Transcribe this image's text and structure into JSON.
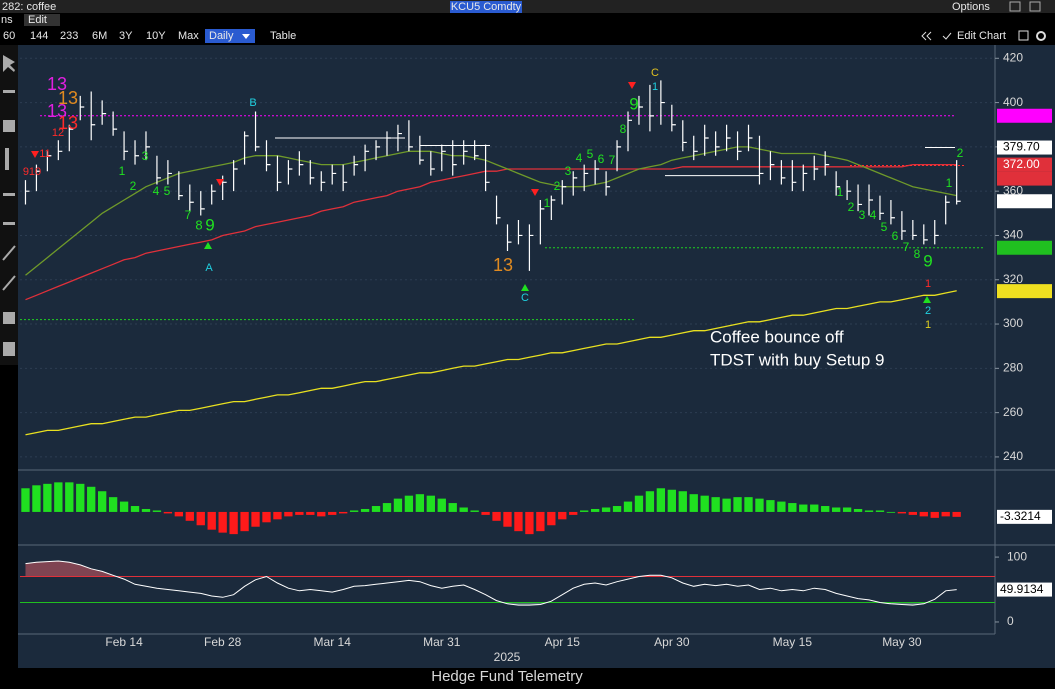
{
  "toolbar": {
    "title": "282: coffee",
    "tab": "ns",
    "menu": "Edit",
    "ticker": "KCU5 Comdty",
    "options": "Options",
    "ranges": [
      "60",
      "144",
      "233",
      "6M",
      "3Y",
      "10Y",
      "Max"
    ],
    "period": "Daily",
    "table": "Table",
    "edit_chart": "Edit Chart"
  },
  "footer": "Hedge Fund Telemetry",
  "chart_data": [
    {
      "type": "ohlc",
      "year": "2025",
      "categories": [
        null,
        null,
        null,
        null,
        null,
        null,
        null,
        null,
        null,
        "Feb 14",
        null,
        null,
        null,
        null,
        null,
        null,
        null,
        null,
        "Feb 28",
        null,
        null,
        null,
        null,
        null,
        null,
        null,
        null,
        null,
        "Mar 14",
        null,
        null,
        null,
        null,
        null,
        null,
        null,
        null,
        null,
        "Mar 31",
        null,
        null,
        null,
        null,
        null,
        null,
        null,
        null,
        null,
        null,
        "Apr 15",
        null,
        null,
        null,
        null,
        null,
        null,
        null,
        null,
        null,
        "Apr 30",
        null,
        null,
        null,
        null,
        null,
        null,
        null,
        null,
        null,
        null,
        "May 15",
        null,
        null,
        null,
        null,
        null,
        null,
        null,
        null,
        null,
        "May 30",
        null,
        null,
        null,
        null,
        null,
        null,
        null,
        null
      ],
      "high": [
        365,
        372,
        378,
        383,
        390,
        403,
        405,
        401,
        396,
        387,
        383,
        387,
        376,
        374,
        369,
        363,
        360,
        363,
        367,
        374,
        387,
        396,
        383,
        376,
        374,
        378,
        374,
        369,
        372,
        372,
        376,
        381,
        383,
        387,
        390,
        392,
        385,
        378,
        381,
        383,
        383,
        383,
        381,
        358,
        345,
        347,
        345,
        356,
        358,
        365,
        369,
        372,
        374,
        369,
        383,
        396,
        403,
        408,
        410,
        399,
        392,
        385,
        390,
        387,
        390,
        387,
        390,
        385,
        378,
        374,
        374,
        372,
        376,
        378,
        369,
        365,
        363,
        363,
        358,
        356,
        351,
        347,
        345,
        347,
        358,
        374,
        null,
        null,
        null
      ],
      "low": [
        354,
        360,
        369,
        374,
        378,
        392,
        383,
        390,
        385,
        374,
        372,
        374,
        363,
        363,
        356,
        351,
        349,
        354,
        356,
        360,
        372,
        378,
        369,
        360,
        363,
        367,
        363,
        360,
        363,
        360,
        367,
        369,
        374,
        376,
        378,
        378,
        372,
        367,
        369,
        367,
        372,
        374,
        360,
        345,
        333,
        336,
        324,
        336,
        347,
        354,
        358,
        360,
        363,
        358,
        369,
        378,
        390,
        387,
        390,
        387,
        378,
        374,
        376,
        376,
        378,
        374,
        378,
        363,
        365,
        363,
        360,
        360,
        365,
        367,
        358,
        356,
        351,
        349,
        347,
        345,
        338,
        338,
        336,
        336,
        345,
        354,
        null,
        null,
        null
      ],
      "close": [
        360,
        369,
        376,
        378,
        388,
        398,
        390,
        395,
        388,
        378,
        376,
        380,
        366,
        368,
        358,
        355,
        352,
        360,
        364,
        370,
        385,
        380,
        372,
        364,
        370,
        372,
        366,
        364,
        368,
        364,
        372,
        378,
        380,
        384,
        386,
        380,
        374,
        370,
        378,
        372,
        378,
        376,
        364,
        348,
        337,
        340,
        340,
        352,
        356,
        362,
        366,
        368,
        370,
        362,
        380,
        392,
        398,
        394,
        400,
        390,
        382,
        378,
        384,
        380,
        384,
        378,
        384,
        368,
        372,
        366,
        364,
        368,
        370,
        372,
        362,
        360,
        354,
        356,
        350,
        348,
        342,
        340,
        338,
        340,
        355,
        355.45,
        null,
        null,
        null
      ],
      "bar_color": "#ffffff",
      "series": [
        {
          "color": "#e8e020",
          "values": [
            250,
            251,
            252,
            252,
            253,
            254,
            255,
            255,
            256,
            257,
            258,
            258,
            259,
            260,
            261,
            261,
            262,
            263,
            264,
            265,
            265,
            266,
            267,
            268,
            268,
            269,
            270,
            271,
            271,
            272,
            273,
            274,
            274,
            275,
            276,
            277,
            278,
            278,
            279,
            280,
            281,
            281,
            282,
            283,
            284,
            284,
            285,
            286,
            287,
            287,
            288,
            289,
            290,
            291,
            291,
            292,
            293,
            294,
            294,
            295,
            296,
            297,
            297,
            298,
            299,
            300,
            301,
            301,
            302,
            303,
            304,
            304,
            305,
            306,
            307,
            307,
            308,
            309,
            310,
            310,
            311,
            312,
            313,
            313,
            314,
            315,
            null,
            null,
            null
          ]
        },
        {
          "color": "#e0303a",
          "values": [
            311,
            313,
            315,
            317,
            319,
            321,
            323,
            325,
            327,
            329,
            330,
            332,
            333,
            334,
            335,
            336,
            337,
            338,
            340,
            341,
            342,
            344,
            345,
            346,
            347,
            348,
            349,
            351,
            352,
            353,
            355,
            356,
            357,
            358,
            360,
            361,
            362,
            364,
            365,
            366,
            367,
            368,
            369,
            369,
            370,
            370,
            370,
            370,
            370,
            370,
            370,
            370,
            370,
            370,
            370,
            370,
            370,
            370,
            370,
            370,
            371,
            371,
            371,
            371,
            371,
            371,
            371,
            371,
            371,
            371,
            371,
            371,
            371,
            371,
            371,
            371,
            371,
            371,
            371,
            371,
            371,
            372,
            372,
            372,
            372,
            372,
            null,
            null,
            null
          ]
        },
        {
          "color": "#6f9a2a",
          "values": [
            322,
            326,
            330,
            334,
            338,
            342,
            346,
            350,
            353,
            356,
            359,
            362,
            364,
            366,
            368,
            369,
            370,
            371,
            372,
            373,
            375,
            376,
            376,
            376,
            375,
            374,
            373,
            372,
            372,
            372,
            373,
            374,
            375,
            376,
            377,
            378,
            378,
            378,
            377,
            376,
            376,
            375,
            374,
            372,
            370,
            368,
            366,
            364,
            363,
            362,
            362,
            362,
            363,
            364,
            366,
            368,
            370,
            371,
            372,
            374,
            375,
            376,
            377,
            378,
            379,
            380,
            380,
            379,
            378,
            377,
            377,
            377,
            377,
            376,
            375,
            374,
            372,
            370,
            368,
            366,
            364,
            362,
            361,
            360,
            359,
            358,
            null,
            null,
            null
          ]
        }
      ],
      "ylim": [
        235,
        426
      ],
      "yticks": [
        240,
        260,
        280,
        300,
        320,
        340,
        360,
        380,
        400,
        420
      ],
      "grid": true,
      "levels": [
        {
          "value": 394.05,
          "color": "#ff00ff",
          "dash": true
        },
        {
          "value": 302,
          "color": "#20d020",
          "dash": true
        },
        {
          "value": 334.45,
          "color": "#20d020",
          "dash": true
        },
        {
          "value": 371.6,
          "color": "#ff3030",
          "dash": true
        },
        {
          "value": 384,
          "color": "#ffffff",
          "dash": false
        },
        {
          "value": 380.6,
          "color": "#ffffff",
          "dash": false
        },
        {
          "value": 367,
          "color": "#ffffff",
          "dash": false
        },
        {
          "value": 379.7,
          "color": "#ffffff",
          "dash": false
        }
      ],
      "price_labels": [
        {
          "value": 394.05,
          "bg": "#ff00ff",
          "fg": "#ffffff"
        },
        {
          "value": 379.7,
          "label": "379.70",
          "bg": "#ffffff",
          "fg": "#000000"
        },
        {
          "value": 372,
          "label": "372.00",
          "bg": "#e0303a",
          "fg": "#ffffff"
        },
        {
          "value": 365.68,
          "bg": "#e0303a",
          "fg": "#ffffff"
        },
        {
          "value": 355.45,
          "bg": "#ffffff",
          "fg": "#000000"
        },
        {
          "value": 334.45,
          "bg": "#20c020",
          "fg": "#000000"
        },
        {
          "value": 314.86,
          "bg": "#f0e020",
          "fg": "#000000"
        }
      ],
      "td_labels": [
        {
          "text": "13",
          "color": "#e020e0"
        },
        {
          "text": "13",
          "color": "#e08a20"
        },
        {
          "text": "13",
          "color": "#e020e0"
        },
        {
          "text": "13",
          "color": "#ff2a2a"
        },
        {
          "text": "12",
          "color": "#ff2a2a"
        },
        {
          "text": "11",
          "color": "#ff2a2a"
        },
        {
          "text": "910",
          "color": "#ff2a2a"
        },
        {
          "text": "1",
          "color": "#20e020"
        },
        {
          "text": "2",
          "color": "#20e020"
        },
        {
          "text": "3",
          "color": "#20e020"
        },
        {
          "text": "4",
          "color": "#20e020"
        },
        {
          "text": "5",
          "color": "#20e020"
        },
        {
          "text": "7",
          "color": "#20e020"
        },
        {
          "text": "8",
          "color": "#20e020"
        },
        {
          "text": "9",
          "color": "#20e020"
        },
        {
          "text": "A",
          "color": "#20d0e0"
        },
        {
          "text": "B",
          "color": "#20d0e0"
        },
        {
          "text": "13",
          "color": "#e08a20"
        },
        {
          "text": "C",
          "color": "#20d0e0"
        },
        {
          "text": "1",
          "color": "#20e020"
        },
        {
          "text": "2",
          "color": "#20e020"
        },
        {
          "text": "3",
          "color": "#20e020"
        },
        {
          "text": "4",
          "color": "#20e020"
        },
        {
          "text": "5",
          "color": "#20e020"
        },
        {
          "text": "6",
          "color": "#20e020"
        },
        {
          "text": "7",
          "color": "#20e020"
        },
        {
          "text": "8",
          "color": "#20e020"
        },
        {
          "text": "9",
          "color": "#20e020"
        },
        {
          "text": "C",
          "color": "#e0c020"
        },
        {
          "text": "1",
          "color": "#20d0e0"
        },
        {
          "text": "1",
          "color": "#20e020"
        },
        {
          "text": "2",
          "color": "#20e020"
        },
        {
          "text": "3",
          "color": "#20e020"
        },
        {
          "text": "4",
          "color": "#20e020"
        },
        {
          "text": "5",
          "color": "#20e020"
        },
        {
          "text": "6",
          "color": "#20e020"
        },
        {
          "text": "7",
          "color": "#20e020"
        },
        {
          "text": "8",
          "color": "#20e020"
        },
        {
          "text": "9",
          "color": "#20e020"
        },
        {
          "text": "1",
          "color": "#ff2a2a"
        },
        {
          "text": "2",
          "color": "#20d0e0"
        },
        {
          "text": "1",
          "color": "#e0d020"
        },
        {
          "text": "1",
          "color": "#20e020"
        },
        {
          "text": "2",
          "color": "#20e020"
        }
      ],
      "note": [
        "Coffee bounce off",
        "TDST with buy Setup 9"
      ]
    },
    {
      "type": "bar",
      "pos_color": "#20e020",
      "neg_color": "#ff1a1a",
      "ylim": [
        -21,
        27
      ],
      "current": -3.3214,
      "values": [
        16,
        18,
        19,
        20,
        20,
        19,
        17,
        14,
        10,
        7,
        4,
        2,
        1,
        -1,
        -3,
        -6,
        -9,
        -12,
        -14,
        -15,
        -13,
        -10,
        -7,
        -5,
        -3,
        -2,
        -2,
        -3,
        -2,
        -1,
        1,
        2,
        4,
        6,
        9,
        11,
        12,
        11,
        9,
        6,
        3,
        1,
        -2,
        -6,
        -10,
        -13,
        -15,
        -13,
        -9,
        -5,
        -2,
        1,
        2,
        3,
        4,
        7,
        11,
        14,
        16,
        15,
        14,
        12,
        11,
        10,
        9,
        10,
        10,
        9,
        8,
        7,
        6,
        5,
        5,
        4,
        3,
        3,
        2,
        1,
        1,
        0,
        -1,
        -2,
        -3,
        -4,
        -3,
        -3.3214,
        null,
        null,
        null
      ]
    },
    {
      "type": "line",
      "color": "#ffffff",
      "ylim": [
        -17,
        114
      ],
      "yticks": [
        0,
        100
      ],
      "current": 49.9134,
      "levels": [
        {
          "value": 70,
          "color": "#e0303a",
          "shade": "rgba(210,90,100,0.55)"
        },
        {
          "value": 30,
          "color": "#20c020",
          "shade": "rgba(120,160,150,0.55)"
        }
      ],
      "values": [
        90,
        92,
        93,
        94,
        92,
        88,
        82,
        78,
        72,
        66,
        58,
        55,
        52,
        50,
        48,
        46,
        44,
        40,
        38,
        42,
        55,
        65,
        70,
        60,
        52,
        48,
        50,
        48,
        46,
        50,
        55,
        56,
        58,
        60,
        62,
        64,
        62,
        56,
        52,
        55,
        57,
        50,
        42,
        33,
        28,
        26,
        26,
        27,
        32,
        42,
        52,
        58,
        60,
        57,
        62,
        66,
        70,
        72,
        72,
        68,
        60,
        55,
        58,
        56,
        58,
        55,
        57,
        50,
        52,
        48,
        50,
        48,
        52,
        50,
        44,
        40,
        36,
        34,
        30,
        28,
        27,
        26,
        28,
        35,
        48,
        49.9134,
        null,
        null,
        null
      ]
    }
  ]
}
